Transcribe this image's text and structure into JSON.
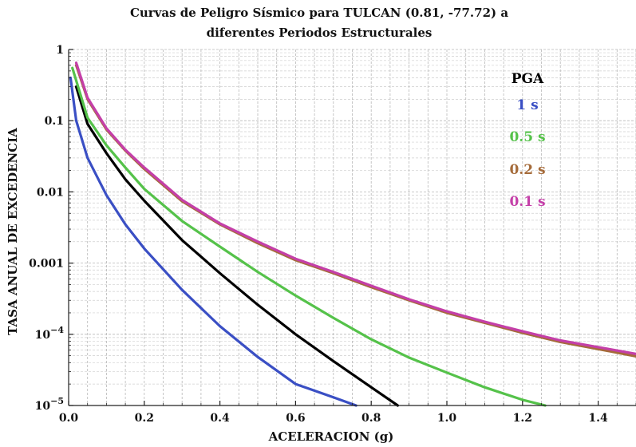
{
  "chart_data": {
    "type": "line",
    "title_line1": "Curvas de Peligro Sísmico para TULCAN (0.81, -77.72) a",
    "title_line2": "diferentes Periodos Estructurales",
    "xlabel": "ACELERACION (g)",
    "ylabel": "TASA ANUAL DE EXCEDENCIA",
    "xlim": [
      0,
      1.5
    ],
    "ylim": [
      1e-05,
      1
    ],
    "y_scale": "log",
    "grid": true,
    "legend_position": "top-right",
    "x_ticks": [
      "0.0",
      "0.2",
      "0.4",
      "0.6",
      "0.8",
      "1.0",
      "1.2",
      "1.4"
    ],
    "x_tick_values": [
      0,
      0.2,
      0.4,
      0.6,
      0.8,
      1.0,
      1.2,
      1.4
    ],
    "y_ticks": [
      {
        "value": 1,
        "base": "1",
        "exp": ""
      },
      {
        "value": 0.1,
        "base": "0.1",
        "exp": ""
      },
      {
        "value": 0.01,
        "base": "0.01",
        "exp": ""
      },
      {
        "value": 0.001,
        "base": "0.001",
        "exp": ""
      },
      {
        "value": 0.0001,
        "base": "10",
        "exp": "−4"
      },
      {
        "value": 1e-05,
        "base": "10",
        "exp": "−5"
      }
    ],
    "series": [
      {
        "name": "PGA",
        "color": "#000000",
        "x": [
          0.02,
          0.05,
          0.1,
          0.15,
          0.2,
          0.3,
          0.4,
          0.5,
          0.6,
          0.7,
          0.8,
          0.87
        ],
        "y": [
          0.3,
          0.09,
          0.035,
          0.015,
          0.0075,
          0.0021,
          0.00072,
          0.00026,
          0.0001,
          4.2e-05,
          1.8e-05,
          1e-05
        ]
      },
      {
        "name": "1 s",
        "color": "#3a4fc4",
        "x": [
          0.005,
          0.02,
          0.05,
          0.1,
          0.15,
          0.2,
          0.3,
          0.4,
          0.5,
          0.6,
          0.7,
          0.76
        ],
        "y": [
          0.4,
          0.1,
          0.03,
          0.009,
          0.0035,
          0.0016,
          0.00042,
          0.00013,
          4.8e-05,
          2e-05,
          1.3e-05,
          1e-05
        ]
      },
      {
        "name": "0.5 s",
        "color": "#55c24a",
        "x": [
          0.01,
          0.05,
          0.1,
          0.15,
          0.2,
          0.3,
          0.4,
          0.5,
          0.6,
          0.7,
          0.8,
          0.9,
          1.0,
          1.1,
          1.2,
          1.26
        ],
        "y": [
          0.55,
          0.11,
          0.045,
          0.022,
          0.011,
          0.0039,
          0.0017,
          0.00075,
          0.00035,
          0.00017,
          8.5e-05,
          4.7e-05,
          2.9e-05,
          1.8e-05,
          1.2e-05,
          1e-05
        ]
      },
      {
        "name": "0.2 s",
        "color": "#a56b3a",
        "x": [
          0.02,
          0.05,
          0.1,
          0.15,
          0.2,
          0.3,
          0.4,
          0.5,
          0.6,
          0.7,
          0.8,
          0.9,
          1.0,
          1.1,
          1.2,
          1.3,
          1.4,
          1.5
        ],
        "y": [
          0.6,
          0.2,
          0.075,
          0.038,
          0.021,
          0.0074,
          0.0035,
          0.0019,
          0.0011,
          0.00072,
          0.00046,
          0.0003,
          0.0002,
          0.000145,
          0.000105,
          7.8e-05,
          6.2e-05,
          4.9e-05
        ]
      },
      {
        "name": "0.1 s",
        "color": "#c43fa8",
        "x": [
          0.02,
          0.05,
          0.1,
          0.15,
          0.2,
          0.3,
          0.4,
          0.5,
          0.6,
          0.7,
          0.8,
          0.9,
          1.0,
          1.1,
          1.2,
          1.3,
          1.4,
          1.5
        ],
        "y": [
          0.65,
          0.21,
          0.078,
          0.039,
          0.022,
          0.0077,
          0.0036,
          0.002,
          0.00115,
          0.00075,
          0.00048,
          0.00031,
          0.00021,
          0.00015,
          0.00011,
          8.2e-05,
          6.6e-05,
          5.3e-05
        ]
      }
    ]
  }
}
